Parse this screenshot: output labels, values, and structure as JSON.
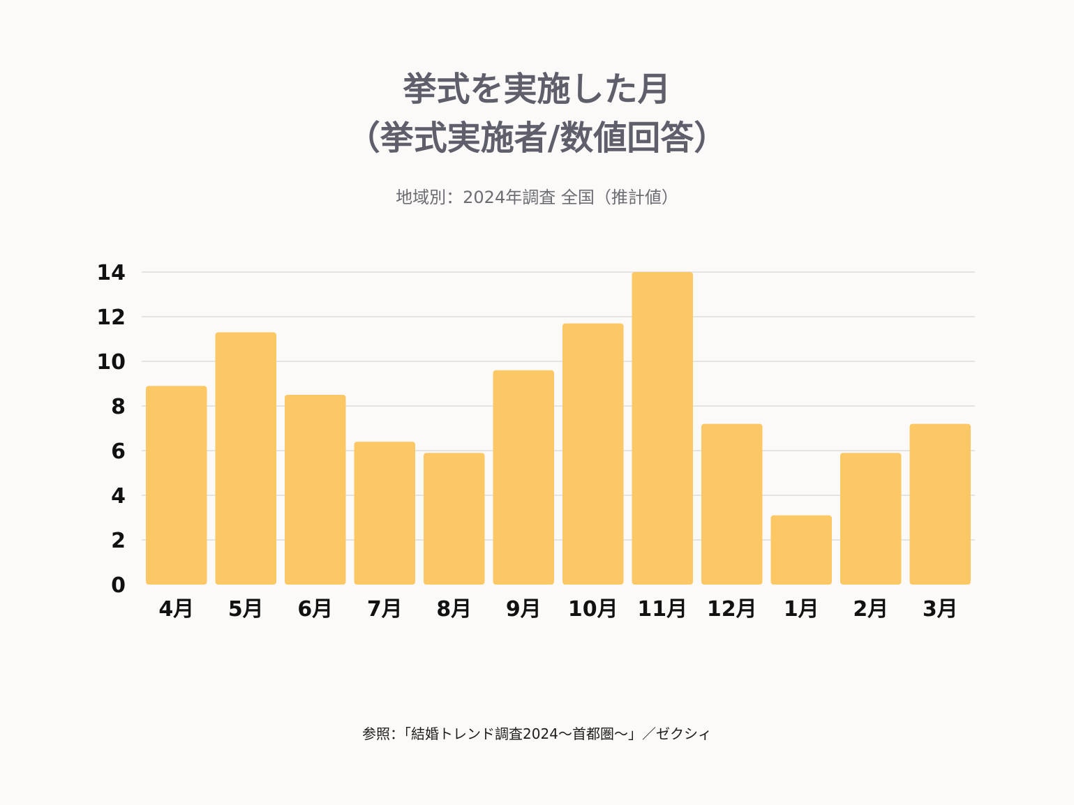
{
  "header": {
    "title_line1": "挙式を実施した月",
    "title_line2": "（挙式実施者/数値回答）",
    "subtitle": "地域別：2024年調査 全国（推計値）"
  },
  "footer": {
    "source": "参照：「結婚トレンド調査2024～首都圏～」／ゼクシィ"
  },
  "colors": {
    "bar": "#fcc865",
    "grid": "#d6d6d6",
    "title": "#5f5f6c",
    "background": "#fcfaf8"
  },
  "chart_data": {
    "type": "bar",
    "title": "挙式を実施した月（挙式実施者/数値回答）",
    "subtitle": "地域別：2024年調査 全国（推計値）",
    "categories": [
      "4月",
      "5月",
      "6月",
      "7月",
      "8月",
      "9月",
      "10月",
      "11月",
      "12月",
      "1月",
      "2月",
      "3月"
    ],
    "values": [
      8.9,
      11.3,
      8.5,
      6.4,
      5.9,
      9.6,
      11.7,
      14.0,
      7.2,
      3.1,
      5.9,
      7.2
    ],
    "xlabel": "",
    "ylabel": "",
    "ylim": [
      0,
      14
    ],
    "yticks": [
      0,
      2,
      4,
      6,
      8,
      10,
      12,
      14
    ],
    "grid": true,
    "legend": "none"
  }
}
